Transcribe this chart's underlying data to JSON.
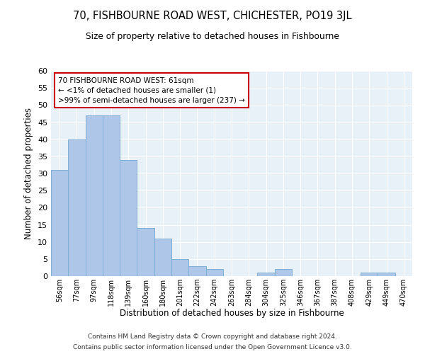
{
  "title": "70, FISHBOURNE ROAD WEST, CHICHESTER, PO19 3JL",
  "subtitle": "Size of property relative to detached houses in Fishbourne",
  "xlabel": "Distribution of detached houses by size in Fishbourne",
  "ylabel": "Number of detached properties",
  "bar_color": "#aec6e8",
  "bar_edge_color": "#7bafd4",
  "background_color": "#e8f0f8",
  "categories": [
    "56sqm",
    "77sqm",
    "97sqm",
    "118sqm",
    "139sqm",
    "160sqm",
    "180sqm",
    "201sqm",
    "222sqm",
    "242sqm",
    "263sqm",
    "284sqm",
    "304sqm",
    "325sqm",
    "346sqm",
    "367sqm",
    "387sqm",
    "408sqm",
    "429sqm",
    "449sqm",
    "470sqm"
  ],
  "values": [
    31,
    40,
    47,
    47,
    34,
    14,
    11,
    5,
    3,
    2,
    0,
    0,
    1,
    2,
    0,
    0,
    0,
    0,
    1,
    1,
    0
  ],
  "ylim": [
    0,
    60
  ],
  "yticks": [
    0,
    5,
    10,
    15,
    20,
    25,
    30,
    35,
    40,
    45,
    50,
    55,
    60
  ],
  "annotation_title": "70 FISHBOURNE ROAD WEST: 61sqm",
  "annotation_line1": "← <1% of detached houses are smaller (1)",
  "annotation_line2": ">99% of semi-detached houses are larger (237) →",
  "footer1": "Contains HM Land Registry data © Crown copyright and database right 2024.",
  "footer2": "Contains public sector information licensed under the Open Government Licence v3.0."
}
